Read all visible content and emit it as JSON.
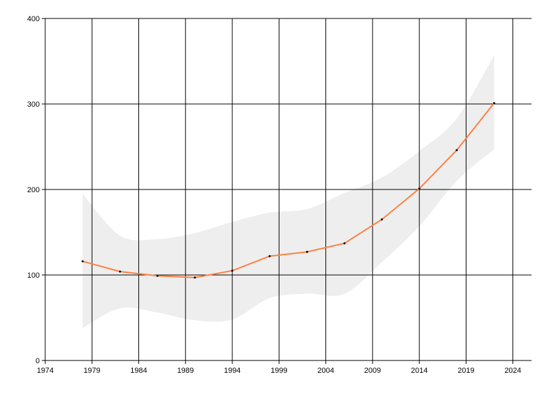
{
  "chart_data": {
    "type": "line",
    "title": "",
    "xlabel": "",
    "ylabel": "",
    "xlim": [
      1974,
      2026
    ],
    "ylim": [
      0,
      400
    ],
    "x_ticks": [
      "1974",
      "1979",
      "1984",
      "1989",
      "1994",
      "1999",
      "2004",
      "2009",
      "2014",
      "2019",
      "2024"
    ],
    "y_ticks": [
      "0",
      "100",
      "200",
      "300",
      "400"
    ],
    "grid": true,
    "legend": "none",
    "colors": {
      "line": "#ff7f3f",
      "band": "#eeeeee",
      "grid": "#000000",
      "marker": "#000000"
    },
    "series": [
      {
        "x": [
          1978,
          1982,
          1986,
          1990,
          1994,
          1998,
          2002,
          2006,
          2010,
          2014,
          2018,
          2022
        ],
        "y": [
          116,
          104,
          99,
          97,
          105,
          122,
          127,
          137,
          165,
          201,
          246,
          301
        ]
      }
    ],
    "band": {
      "x": [
        1978,
        1982,
        1986,
        1990,
        1994,
        1998,
        2002,
        2006,
        2010,
        2014,
        2018,
        2022
      ],
      "upper": [
        195,
        146,
        142,
        149,
        162,
        173,
        177,
        196,
        214,
        245,
        283,
        357
      ],
      "lower": [
        38,
        61,
        56,
        47,
        48,
        73,
        78,
        78,
        115,
        157,
        210,
        247
      ]
    }
  }
}
